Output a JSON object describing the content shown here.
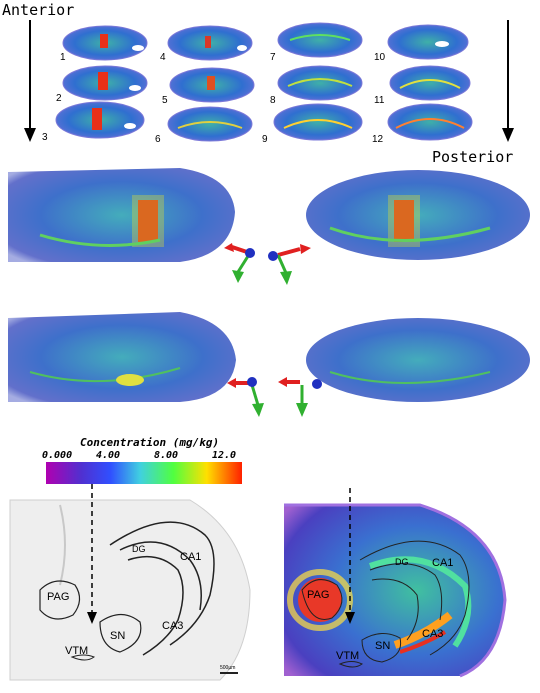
{
  "orientation": {
    "start_label": "Anterior",
    "end_label": "Posterior"
  },
  "slice_numbers": [
    "1",
    "2",
    "3",
    "4",
    "5",
    "6",
    "7",
    "8",
    "9",
    "10",
    "11",
    "12"
  ],
  "colorbar": {
    "title": "Concentration (mg/kg)",
    "ticks": [
      "0.000",
      "4.00",
      "8.00",
      "12.0"
    ],
    "colors": [
      "#b000b0",
      "#3050ff",
      "#40d0e0",
      "#50ff40",
      "#ffe000",
      "#ff2000"
    ]
  },
  "histology": {
    "labels": {
      "dg": "DG",
      "ca1": "CA1",
      "ca3": "CA3",
      "pag": "PAG",
      "sn": "SN",
      "vtm": "VTM"
    },
    "scale_bar": "500µm"
  },
  "heatmap": {
    "labels": {
      "dg": "DG",
      "ca1": "CA1",
      "ca3": "CA3",
      "pag": "PAG",
      "sn": "SN",
      "vtm": "VTM"
    }
  },
  "colors": {
    "low": "#2f5fd0",
    "mid": "#3ab0c8",
    "high": "#e02010",
    "hot": "#ff6010",
    "arrow_red": "#e02020",
    "arrow_green": "#30b030",
    "arrow_blue": "#2030c0"
  }
}
